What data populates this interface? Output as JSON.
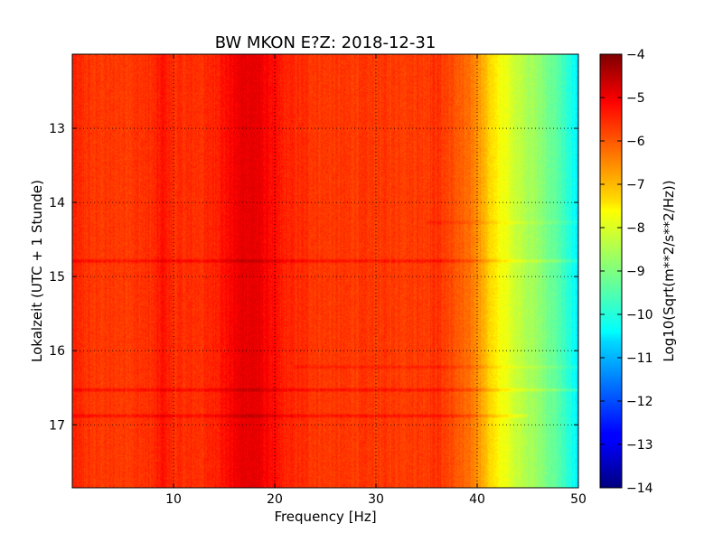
{
  "chart_data": {
    "type": "heatmap",
    "title": "BW MKON E?Z: 2018-12-31",
    "xlabel": "Frequency [Hz]",
    "ylabel": "Lokalzeit (UTC + 1 Stunde)",
    "xlim": [
      0,
      50
    ],
    "ylim": [
      12.0,
      17.85
    ],
    "x_ticks": [
      10,
      20,
      30,
      40,
      50
    ],
    "x_tick_labels": [
      "10",
      "20",
      "30",
      "40",
      "50"
    ],
    "y_ticks": [
      13,
      14,
      15,
      16,
      17
    ],
    "y_tick_labels": [
      "13",
      "14",
      "15",
      "16",
      "17"
    ],
    "grid": true,
    "colorbar": {
      "label": "Log10(Sqrt(m**2/s**2/Hz))",
      "min": -14,
      "max": -4,
      "ticks": [
        -4,
        -5,
        -6,
        -7,
        -8,
        -9,
        -10,
        -11,
        -12,
        -13,
        -14
      ],
      "tick_labels": [
        "−4",
        "−5",
        "−6",
        "−7",
        "−8",
        "−9",
        "−10",
        "−11",
        "−12",
        "−13",
        "−14"
      ],
      "colormap": "jet"
    },
    "spectrum_profile": {
      "frequency_hz": [
        0,
        2,
        5,
        8,
        9,
        10,
        13,
        15,
        16,
        17,
        18,
        19,
        21,
        25,
        30,
        35,
        36,
        37,
        38,
        40,
        41,
        42,
        44,
        46,
        48,
        49,
        50
      ],
      "log10_amplitude": [
        -5.6,
        -5.8,
        -5.8,
        -5.7,
        -5.4,
        -5.7,
        -5.7,
        -5.4,
        -5.2,
        -5.0,
        -5.0,
        -5.2,
        -5.6,
        -5.8,
        -5.8,
        -5.8,
        -5.7,
        -5.9,
        -6.1,
        -6.6,
        -7.2,
        -7.7,
        -8.3,
        -8.8,
        -9.4,
        -9.9,
        -10.4
      ]
    },
    "horizontal_bands": [
      {
        "time_h": 14.79,
        "freq_range_hz": [
          0,
          50
        ],
        "delta": 0.5
      },
      {
        "time_h": 16.22,
        "freq_range_hz": [
          22,
          50
        ],
        "delta": 0.3
      },
      {
        "time_h": 16.53,
        "freq_range_hz": [
          0,
          50
        ],
        "delta": 0.5
      },
      {
        "time_h": 16.88,
        "freq_range_hz": [
          0,
          45
        ],
        "delta": 0.5
      },
      {
        "time_h": 14.27,
        "freq_range_hz": [
          35,
          50
        ],
        "delta": 0.25
      }
    ]
  }
}
